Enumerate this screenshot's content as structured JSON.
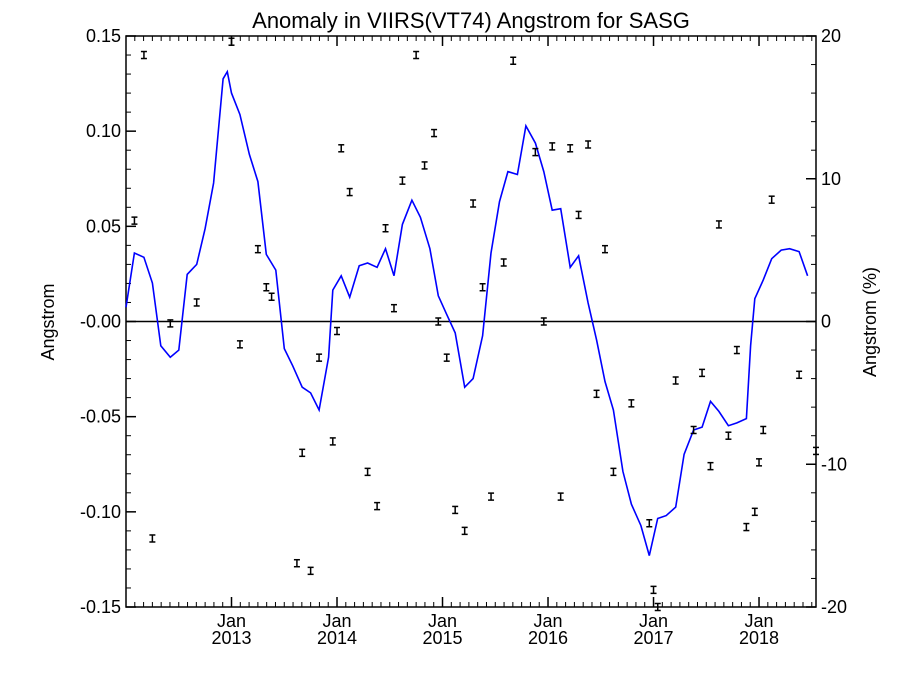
{
  "chart_data": {
    "type": "line",
    "title": "Anomaly in VIIRS(VT74) Angstrom for SASG",
    "ylabel": "Angstrom",
    "ylabel_right": "Angstrom (%)",
    "ylim": [
      -0.15,
      0.15
    ],
    "ylim_right": [
      -20,
      20
    ],
    "yticks": [
      "0.15",
      "0.10",
      "0.05",
      "-0.00",
      "-0.05",
      "-0.10",
      "-0.15"
    ],
    "yticks_right": [
      "20",
      "10",
      "0",
      "-10",
      "-20"
    ],
    "xlim": [
      2012.0,
      2018.54
    ],
    "xticks": [
      {
        "month": "Jan",
        "year": "2013",
        "x": 2013.0
      },
      {
        "month": "Jan",
        "year": "2014",
        "x": 2014.0
      },
      {
        "month": "Jan",
        "year": "2015",
        "x": 2015.0
      },
      {
        "month": "Jan",
        "year": "2016",
        "x": 2016.0
      },
      {
        "month": "Jan",
        "year": "2017",
        "x": 2017.0
      },
      {
        "month": "Jan",
        "year": "2018",
        "x": 2018.0
      }
    ],
    "zero_line": true,
    "series": [
      {
        "type": "line",
        "color": "#0000ff",
        "axis": "right",
        "points": [
          [
            2012.0,
            1.0
          ],
          [
            2012.08,
            4.8
          ],
          [
            2012.17,
            4.5
          ],
          [
            2012.25,
            2.7
          ],
          [
            2012.33,
            -1.7
          ],
          [
            2012.42,
            -2.5
          ],
          [
            2012.5,
            -2.0
          ],
          [
            2012.58,
            3.3
          ],
          [
            2012.67,
            4.0
          ],
          [
            2012.75,
            6.5
          ],
          [
            2012.83,
            9.7
          ],
          [
            2012.92,
            17.0
          ],
          [
            2012.96,
            17.5
          ],
          [
            2013.0,
            16.0
          ],
          [
            2013.08,
            14.5
          ],
          [
            2013.17,
            11.7
          ],
          [
            2013.25,
            9.8
          ],
          [
            2013.33,
            4.7
          ],
          [
            2013.42,
            3.6
          ],
          [
            2013.5,
            -1.9
          ],
          [
            2013.58,
            -3.1
          ],
          [
            2013.67,
            -4.6
          ],
          [
            2013.75,
            -5.0
          ],
          [
            2013.83,
            -6.2
          ],
          [
            2013.92,
            -2.5
          ],
          [
            2013.96,
            2.2
          ],
          [
            2014.04,
            3.2
          ],
          [
            2014.12,
            1.7
          ],
          [
            2014.21,
            3.9
          ],
          [
            2014.29,
            4.1
          ],
          [
            2014.38,
            3.8
          ],
          [
            2014.46,
            5.1
          ],
          [
            2014.54,
            3.2
          ],
          [
            2014.62,
            6.8
          ],
          [
            2014.71,
            8.5
          ],
          [
            2014.79,
            7.3
          ],
          [
            2014.88,
            5.1
          ],
          [
            2014.96,
            1.8
          ],
          [
            2015.04,
            0.5
          ],
          [
            2015.12,
            -0.8
          ],
          [
            2015.21,
            -4.6
          ],
          [
            2015.29,
            -4.0
          ],
          [
            2015.38,
            -1.0
          ],
          [
            2015.46,
            4.8
          ],
          [
            2015.54,
            8.4
          ],
          [
            2015.62,
            10.5
          ],
          [
            2015.71,
            10.3
          ],
          [
            2015.79,
            13.7
          ],
          [
            2015.88,
            12.5
          ],
          [
            2015.96,
            10.5
          ],
          [
            2016.04,
            7.8
          ],
          [
            2016.12,
            7.9
          ],
          [
            2016.21,
            3.8
          ],
          [
            2016.29,
            4.6
          ],
          [
            2016.38,
            1.3
          ],
          [
            2016.46,
            -1.3
          ],
          [
            2016.54,
            -4.2
          ],
          [
            2016.62,
            -6.2
          ],
          [
            2016.71,
            -10.5
          ],
          [
            2016.79,
            -12.8
          ],
          [
            2016.88,
            -14.3
          ],
          [
            2016.96,
            -16.4
          ],
          [
            2017.04,
            -13.8
          ],
          [
            2017.12,
            -13.6
          ],
          [
            2017.21,
            -13.0
          ],
          [
            2017.29,
            -9.3
          ],
          [
            2017.38,
            -7.6
          ],
          [
            2017.46,
            -7.4
          ],
          [
            2017.54,
            -5.6
          ],
          [
            2017.62,
            -6.3
          ],
          [
            2017.71,
            -7.3
          ],
          [
            2017.79,
            -7.1
          ],
          [
            2017.88,
            -6.8
          ],
          [
            2017.92,
            -1.7
          ],
          [
            2017.96,
            1.6
          ],
          [
            2018.04,
            2.9
          ],
          [
            2018.12,
            4.4
          ],
          [
            2018.21,
            5.0
          ],
          [
            2018.29,
            5.1
          ],
          [
            2018.38,
            4.9
          ],
          [
            2018.46,
            3.2
          ]
        ]
      },
      {
        "type": "errorbar",
        "color": "#000000",
        "axis": "left",
        "points": [
          [
            2012.08,
            0.053
          ],
          [
            2012.17,
            0.14
          ],
          [
            2012.25,
            -0.114
          ],
          [
            2012.42,
            -0.001
          ],
          [
            2012.67,
            0.01
          ],
          [
            2013.0,
            0.147
          ],
          [
            2013.08,
            -0.012
          ],
          [
            2013.25,
            0.038
          ],
          [
            2013.33,
            0.018
          ],
          [
            2013.38,
            0.013
          ],
          [
            2013.62,
            -0.127
          ],
          [
            2013.67,
            -0.069
          ],
          [
            2013.75,
            -0.131
          ],
          [
            2013.83,
            -0.019
          ],
          [
            2013.96,
            -0.063
          ],
          [
            2014.0,
            -0.005
          ],
          [
            2014.04,
            0.091
          ],
          [
            2014.12,
            0.068
          ],
          [
            2014.29,
            -0.079
          ],
          [
            2014.38,
            -0.097
          ],
          [
            2014.46,
            0.049
          ],
          [
            2014.54,
            0.007
          ],
          [
            2014.62,
            0.074
          ],
          [
            2014.75,
            0.14
          ],
          [
            2014.83,
            0.082
          ],
          [
            2014.92,
            0.099
          ],
          [
            2014.96,
            0.0
          ],
          [
            2015.04,
            -0.019
          ],
          [
            2015.12,
            -0.099
          ],
          [
            2015.21,
            -0.11
          ],
          [
            2015.29,
            0.062
          ],
          [
            2015.38,
            0.018
          ],
          [
            2015.46,
            -0.092
          ],
          [
            2015.58,
            0.031
          ],
          [
            2015.67,
            0.137
          ],
          [
            2015.88,
            0.089
          ],
          [
            2015.96,
            0.0
          ],
          [
            2016.04,
            0.092
          ],
          [
            2016.12,
            -0.092
          ],
          [
            2016.21,
            0.091
          ],
          [
            2016.29,
            0.056
          ],
          [
            2016.38,
            0.093
          ],
          [
            2016.46,
            -0.038
          ],
          [
            2016.54,
            0.038
          ],
          [
            2016.62,
            -0.079
          ],
          [
            2016.79,
            -0.043
          ],
          [
            2016.96,
            -0.106
          ],
          [
            2017.0,
            -0.141
          ],
          [
            2017.04,
            -0.15
          ],
          [
            2017.21,
            -0.031
          ],
          [
            2017.38,
            -0.057
          ],
          [
            2017.46,
            -0.027
          ],
          [
            2017.54,
            -0.076
          ],
          [
            2017.62,
            0.051
          ],
          [
            2017.71,
            -0.06
          ],
          [
            2017.79,
            -0.015
          ],
          [
            2017.88,
            -0.108
          ],
          [
            2017.96,
            -0.1
          ],
          [
            2018.0,
            -0.074
          ],
          [
            2018.04,
            -0.057
          ],
          [
            2018.12,
            0.064
          ],
          [
            2018.38,
            -0.028
          ],
          [
            2018.54,
            -0.068
          ]
        ]
      }
    ]
  }
}
